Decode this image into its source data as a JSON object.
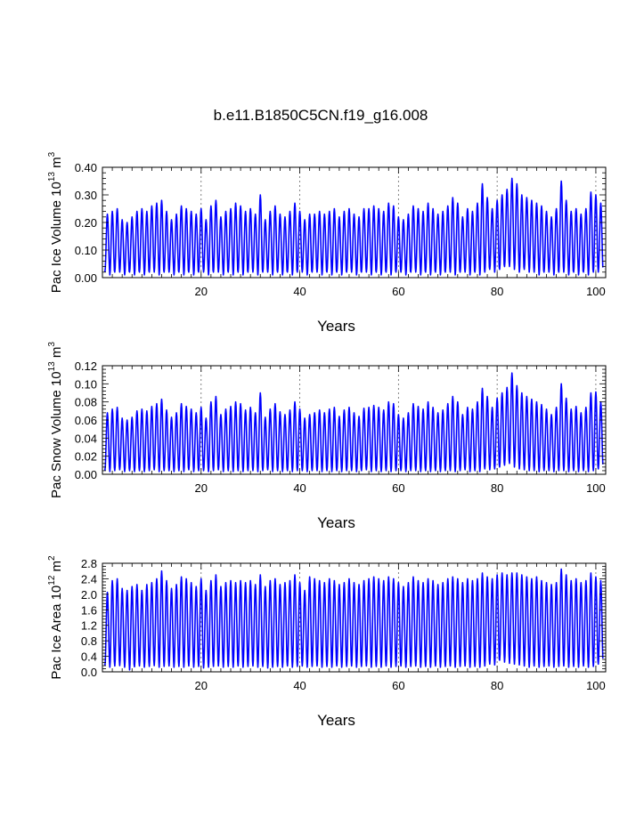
{
  "title": "b.e11.B1850C5CN.f19_g16.008",
  "series_color": "#0000ff",
  "chart_data": [
    {
      "type": "line",
      "title": "b.e11.B1850C5CN.f19_g16.008",
      "xlabel": "Years",
      "ylabel": {
        "main": "Pac Ice Volume 10",
        "exp": "13",
        "unit": " m",
        "unit_exp": "3"
      },
      "xlim": [
        0,
        102
      ],
      "ylim": [
        0,
        0.4
      ],
      "xticks": [
        "20",
        "40",
        "60",
        "80",
        "100"
      ],
      "yticks": [
        "0.00",
        "0.10",
        "0.20",
        "0.30",
        "0.40"
      ],
      "gridlines_x": [
        20,
        40,
        60,
        80,
        100
      ],
      "series": [
        {
          "name": "Pac Ice Volume",
          "x_start": 0.5,
          "minima": [
            0.02,
            0.01,
            0.02,
            0.02,
            0.01,
            0.02,
            0.01,
            0.02,
            0.01,
            0.02,
            0.02,
            0.01,
            0.02,
            0.02,
            0.01,
            0.02,
            0.01,
            0.02,
            0.01,
            0.02,
            0.02,
            0.01,
            0.02,
            0.02,
            0.01,
            0.02,
            0.01,
            0.02,
            0.01,
            0.02,
            0.02,
            0.01,
            0.02,
            0.02,
            0.01,
            0.02,
            0.01,
            0.02,
            0.01,
            0.02,
            0.02,
            0.01,
            0.02,
            0.02,
            0.01,
            0.02,
            0.01,
            0.02,
            0.01,
            0.02,
            0.02,
            0.01,
            0.02,
            0.02,
            0.01,
            0.02,
            0.01,
            0.02,
            0.01,
            0.02,
            0.02,
            0.01,
            0.02,
            0.02,
            0.01,
            0.02,
            0.01,
            0.02,
            0.01,
            0.02,
            0.02,
            0.01,
            0.02,
            0.02,
            0.01,
            0.02,
            0.01,
            0.02,
            0.03,
            0.02,
            0.03,
            0.04,
            0.04,
            0.03,
            0.02,
            0.03,
            0.02,
            0.02,
            0.01,
            0.02,
            0.02,
            0.01,
            0.02,
            0.02,
            0.01,
            0.02,
            0.01,
            0.02,
            0.01,
            0.02,
            0.02
          ],
          "maxima": [
            0.23,
            0.24,
            0.25,
            0.21,
            0.2,
            0.22,
            0.24,
            0.25,
            0.24,
            0.26,
            0.27,
            0.28,
            0.24,
            0.21,
            0.23,
            0.26,
            0.25,
            0.24,
            0.23,
            0.25,
            0.21,
            0.26,
            0.28,
            0.22,
            0.24,
            0.25,
            0.27,
            0.26,
            0.24,
            0.25,
            0.23,
            0.3,
            0.21,
            0.24,
            0.26,
            0.23,
            0.22,
            0.24,
            0.27,
            0.24,
            0.21,
            0.23,
            0.23,
            0.24,
            0.23,
            0.24,
            0.25,
            0.22,
            0.24,
            0.25,
            0.23,
            0.22,
            0.25,
            0.25,
            0.26,
            0.25,
            0.24,
            0.27,
            0.26,
            0.22,
            0.21,
            0.23,
            0.26,
            0.25,
            0.24,
            0.27,
            0.25,
            0.23,
            0.24,
            0.26,
            0.29,
            0.27,
            0.22,
            0.25,
            0.24,
            0.27,
            0.34,
            0.29,
            0.25,
            0.28,
            0.3,
            0.32,
            0.36,
            0.34,
            0.3,
            0.29,
            0.28,
            0.27,
            0.26,
            0.24,
            0.22,
            0.25,
            0.35,
            0.28,
            0.24,
            0.25,
            0.23,
            0.25,
            0.31,
            0.3,
            0.27
          ]
        }
      ]
    },
    {
      "type": "line",
      "xlabel": "Years",
      "ylabel": {
        "main": "Pac Snow Volume 10",
        "exp": "13",
        "unit": " m",
        "unit_exp": "3"
      },
      "xlim": [
        0,
        102
      ],
      "ylim": [
        0,
        0.12
      ],
      "xticks": [
        "20",
        "40",
        "60",
        "80",
        "100"
      ],
      "yticks": [
        "0.00",
        "0.02",
        "0.04",
        "0.06",
        "0.08",
        "0.10",
        "0.12"
      ],
      "gridlines_x": [
        20,
        40,
        60,
        80,
        100
      ],
      "series": [
        {
          "name": "Pac Snow Volume",
          "x_start": 0.5,
          "minima": [
            0.004,
            0.003,
            0.004,
            0.005,
            0.003,
            0.004,
            0.003,
            0.004,
            0.003,
            0.004,
            0.005,
            0.003,
            0.004,
            0.004,
            0.003,
            0.004,
            0.003,
            0.005,
            0.003,
            0.004,
            0.004,
            0.003,
            0.004,
            0.005,
            0.003,
            0.004,
            0.003,
            0.004,
            0.003,
            0.004,
            0.004,
            0.003,
            0.004,
            0.005,
            0.003,
            0.004,
            0.003,
            0.004,
            0.003,
            0.004,
            0.004,
            0.003,
            0.004,
            0.004,
            0.003,
            0.004,
            0.003,
            0.004,
            0.003,
            0.004,
            0.004,
            0.003,
            0.004,
            0.005,
            0.003,
            0.004,
            0.003,
            0.004,
            0.003,
            0.004,
            0.004,
            0.003,
            0.004,
            0.004,
            0.003,
            0.004,
            0.003,
            0.004,
            0.003,
            0.004,
            0.004,
            0.003,
            0.004,
            0.005,
            0.003,
            0.004,
            0.003,
            0.006,
            0.005,
            0.006,
            0.008,
            0.01,
            0.012,
            0.008,
            0.006,
            0.005,
            0.004,
            0.004,
            0.003,
            0.004,
            0.004,
            0.003,
            0.004,
            0.004,
            0.003,
            0.004,
            0.003,
            0.004,
            0.003,
            0.004,
            0.006
          ],
          "maxima": [
            0.068,
            0.072,
            0.074,
            0.062,
            0.06,
            0.063,
            0.07,
            0.072,
            0.07,
            0.075,
            0.078,
            0.083,
            0.071,
            0.063,
            0.068,
            0.078,
            0.075,
            0.072,
            0.068,
            0.074,
            0.062,
            0.08,
            0.086,
            0.066,
            0.072,
            0.075,
            0.08,
            0.078,
            0.071,
            0.074,
            0.068,
            0.09,
            0.063,
            0.072,
            0.078,
            0.069,
            0.066,
            0.071,
            0.08,
            0.072,
            0.062,
            0.066,
            0.068,
            0.071,
            0.068,
            0.072,
            0.074,
            0.064,
            0.071,
            0.074,
            0.068,
            0.064,
            0.073,
            0.074,
            0.076,
            0.074,
            0.071,
            0.08,
            0.078,
            0.066,
            0.062,
            0.068,
            0.078,
            0.075,
            0.072,
            0.08,
            0.074,
            0.068,
            0.071,
            0.078,
            0.086,
            0.08,
            0.066,
            0.074,
            0.072,
            0.08,
            0.095,
            0.086,
            0.074,
            0.084,
            0.09,
            0.096,
            0.112,
            0.098,
            0.09,
            0.086,
            0.083,
            0.08,
            0.077,
            0.072,
            0.066,
            0.074,
            0.1,
            0.084,
            0.072,
            0.075,
            0.068,
            0.074,
            0.09,
            0.091,
            0.08
          ]
        }
      ]
    },
    {
      "type": "line",
      "xlabel": "Years",
      "ylabel": {
        "main": "Pac Ice Area 10",
        "exp": "12",
        "unit": " m",
        "unit_exp": "2"
      },
      "xlim": [
        0,
        102
      ],
      "ylim": [
        0,
        2.8
      ],
      "xticks": [
        "20",
        "40",
        "60",
        "80",
        "100"
      ],
      "yticks": [
        "0.0",
        "0.4",
        "0.8",
        "1.2",
        "1.6",
        "2.0",
        "2.4",
        "2.8"
      ],
      "gridlines_x": [
        20,
        40,
        60,
        80,
        100
      ],
      "series": [
        {
          "name": "Pac Ice Area",
          "x_start": 0.5,
          "minima": [
            0.15,
            0.12,
            0.15,
            0.16,
            0.12,
            0.05,
            0.13,
            0.15,
            0.12,
            0.14,
            0.16,
            0.12,
            0.14,
            0.15,
            0.12,
            0.14,
            0.12,
            0.15,
            0.12,
            0.14,
            0.1,
            0.12,
            0.14,
            0.15,
            0.12,
            0.14,
            0.12,
            0.15,
            0.12,
            0.14,
            0.15,
            0.12,
            0.14,
            0.1,
            0.12,
            0.14,
            0.12,
            0.15,
            0.12,
            0.14,
            0.15,
            0.12,
            0.14,
            0.15,
            0.12,
            0.14,
            0.12,
            0.15,
            0.12,
            0.14,
            0.15,
            0.12,
            0.14,
            0.15,
            0.12,
            0.14,
            0.12,
            0.15,
            0.12,
            0.14,
            0.15,
            0.12,
            0.14,
            0.15,
            0.12,
            0.14,
            0.12,
            0.15,
            0.12,
            0.14,
            0.15,
            0.12,
            0.14,
            0.15,
            0.12,
            0.14,
            0.12,
            0.15,
            0.2,
            0.18,
            0.3,
            0.25,
            0.22,
            0.2,
            0.18,
            0.15,
            0.12,
            0.15,
            0.12,
            0.14,
            0.15,
            0.12,
            0.14,
            0.15,
            0.12,
            0.14,
            0.12,
            0.15,
            0.12,
            0.14,
            0.2
          ],
          "maxima": [
            2.05,
            2.35,
            2.4,
            2.15,
            2.1,
            2.2,
            2.25,
            2.1,
            2.25,
            2.3,
            2.4,
            2.6,
            2.35,
            2.15,
            2.25,
            2.45,
            2.4,
            2.3,
            2.2,
            2.4,
            2.1,
            2.35,
            2.5,
            2.2,
            2.3,
            2.35,
            2.3,
            2.35,
            2.3,
            2.35,
            2.25,
            2.5,
            2.2,
            2.35,
            2.4,
            2.25,
            2.3,
            2.35,
            2.5,
            2.3,
            2.1,
            2.45,
            2.4,
            2.35,
            2.3,
            2.4,
            2.35,
            2.25,
            2.3,
            2.4,
            2.3,
            2.25,
            2.35,
            2.4,
            2.45,
            2.4,
            2.35,
            2.45,
            2.4,
            2.3,
            2.2,
            2.3,
            2.45,
            2.35,
            2.3,
            2.4,
            2.35,
            2.25,
            2.3,
            2.4,
            2.45,
            2.4,
            2.3,
            2.4,
            2.35,
            2.4,
            2.55,
            2.45,
            2.4,
            2.5,
            2.55,
            2.5,
            2.55,
            2.55,
            2.5,
            2.45,
            2.4,
            2.45,
            2.35,
            2.3,
            2.25,
            2.3,
            2.65,
            2.5,
            2.35,
            2.4,
            2.3,
            2.35,
            2.55,
            2.45,
            2.35
          ]
        }
      ]
    }
  ]
}
